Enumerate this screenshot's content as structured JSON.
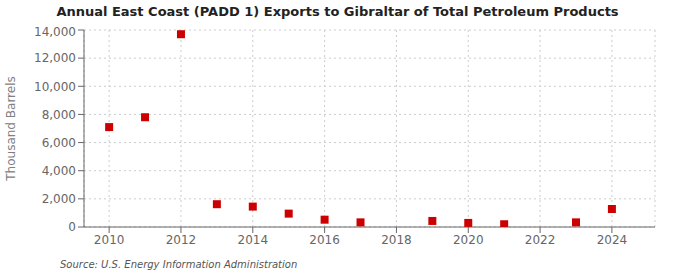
{
  "chart_data": {
    "type": "scatter",
    "title": "Annual East Coast (PADD 1) Exports to Gibraltar of Total Petroleum Products",
    "ylabel": "Thousand Barrels",
    "annotations": [
      "Source: U.S. Energy Information Administration"
    ],
    "x": [
      2010,
      2011,
      2012,
      2013,
      2014,
      2015,
      2016,
      2017,
      2019,
      2020,
      2021,
      2023,
      2024
    ],
    "values": [
      7100,
      7800,
      13700,
      1620,
      1450,
      950,
      520,
      330,
      430,
      290,
      195,
      330,
      1280
    ],
    "color": "#cc0000",
    "marker": "square",
    "xlim": [
      2009.3,
      2025.2
    ],
    "xticks": [
      2010,
      2012,
      2014,
      2016,
      2018,
      2020,
      2022,
      2024
    ],
    "ylim": [
      0,
      14000
    ],
    "yticks": [
      0,
      {
        "value": 2000,
        "label": "2,000"
      },
      {
        "value": 4000,
        "label": "4,000"
      },
      {
        "value": 6000,
        "label": "6,000"
      },
      {
        "value": 8000,
        "label": "8,000"
      },
      {
        "value": 10000,
        "label": "10,000"
      },
      {
        "value": 12000,
        "label": "12,000"
      },
      {
        "value": 14000,
        "label": "14,000"
      }
    ],
    "grid": true
  }
}
